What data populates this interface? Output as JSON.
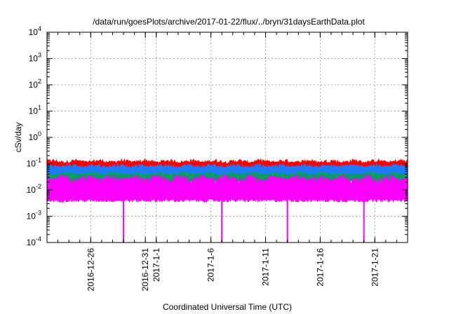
{
  "chart_data": {
    "type": "line",
    "title": "/data/run/goesPlots/archive/2017-01-22/flux/../bryn/31daysEarthData.plot",
    "xlabel": "Coordinated Universal Time (UTC)",
    "ylabel": "cSv/day",
    "yscale": "log",
    "ylim": [
      0.0001,
      10000
    ],
    "xlim": [
      "2016-12-22",
      "2017-01-24"
    ],
    "grid": true,
    "x_ticks": [
      "2016-12-26",
      "2016-12-31",
      "2017-1-1",
      "2017-1-6",
      "2017-1-11",
      "2017-1-16",
      "2017-1-21"
    ],
    "y_ticks": [
      {
        "base": "10",
        "exp": "-4"
      },
      {
        "base": "10",
        "exp": "-3"
      },
      {
        "base": "10",
        "exp": "-2"
      },
      {
        "base": "10",
        "exp": "-1"
      },
      {
        "base": "10",
        "exp": "0"
      },
      {
        "base": "10",
        "exp": "1"
      },
      {
        "base": "10",
        "exp": "2"
      },
      {
        "base": "10",
        "exp": "3"
      },
      {
        "base": "10",
        "exp": "4"
      }
    ],
    "series": [
      {
        "color": "#ff0000",
        "approx_min": 0.05,
        "approx_max": 0.15,
        "approx_typical": 0.09
      },
      {
        "color": "#1e7bff",
        "approx_min": 0.03,
        "approx_max": 0.1,
        "approx_typical": 0.06
      },
      {
        "color": "#00a060",
        "approx_min": 0.02,
        "approx_max": 0.05,
        "approx_typical": 0.03
      },
      {
        "color": "#ff00ff",
        "approx_min": 0.004,
        "approx_max": 0.04,
        "approx_typical": 0.012,
        "dropouts": [
          "2016-12-29",
          "2017-01-07",
          "2017-01-13",
          "2017-01-20"
        ]
      }
    ]
  }
}
